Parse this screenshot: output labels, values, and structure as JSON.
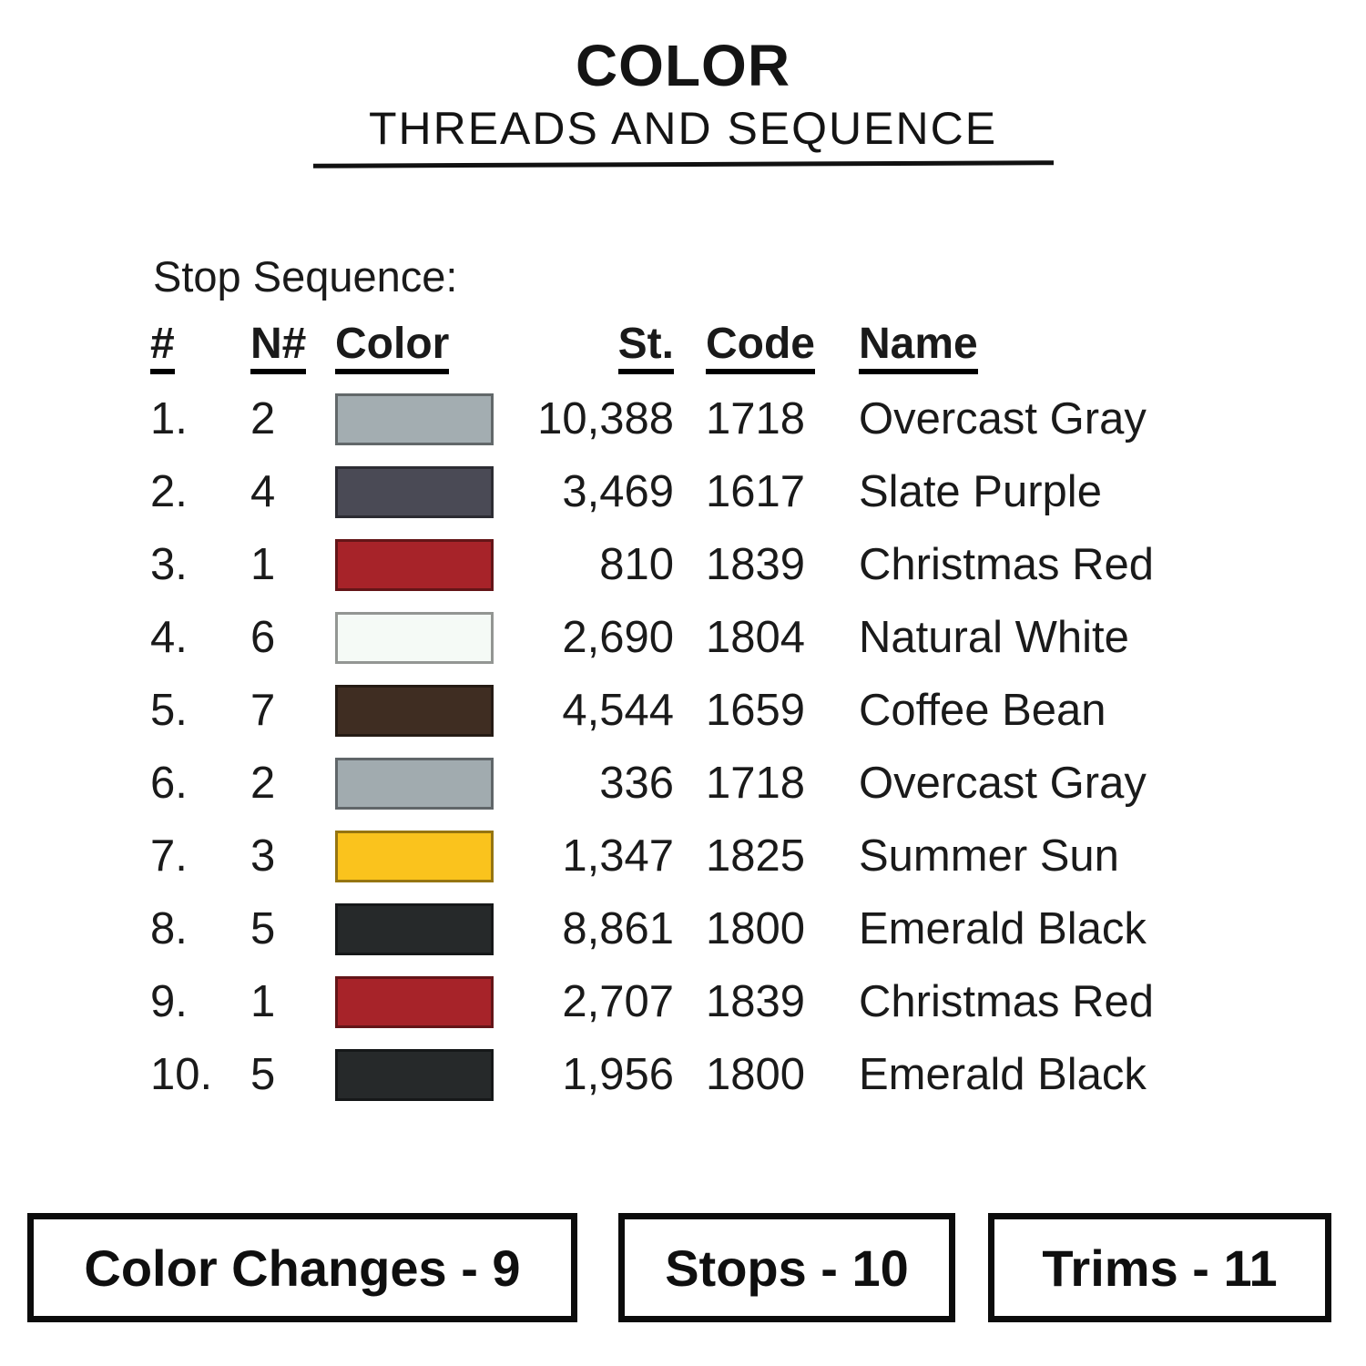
{
  "title": {
    "main": "COLOR",
    "subtitle": "THREADS AND SEQUENCE"
  },
  "stop_sequence_label": "Stop Sequence:",
  "table": {
    "headers": {
      "num": "#",
      "needle": "N#",
      "color": "Color",
      "stitches": "St.",
      "code": "Code",
      "name": "Name"
    },
    "rows": [
      {
        "num": "1.",
        "needle": "2",
        "swatch_hex": "#a3adb1",
        "stitches": "10,388",
        "code": "1718",
        "name": "Overcast Gray"
      },
      {
        "num": "2.",
        "needle": "4",
        "swatch_hex": "#4a4a55",
        "stitches": "3,469",
        "code": "1617",
        "name": "Slate Purple"
      },
      {
        "num": "3.",
        "needle": "1",
        "swatch_hex": "#a72329",
        "stitches": "810",
        "code": "1839",
        "name": "Christmas Red"
      },
      {
        "num": "4.",
        "needle": "6",
        "swatch_hex": "#f5faf6",
        "stitches": "2,690",
        "code": "1804",
        "name": "Natural White"
      },
      {
        "num": "5.",
        "needle": "7",
        "swatch_hex": "#3f2d22",
        "stitches": "4,544",
        "code": "1659",
        "name": "Coffee Bean"
      },
      {
        "num": "6.",
        "needle": "2",
        "swatch_hex": "#a1abaf",
        "stitches": "336",
        "code": "1718",
        "name": "Overcast Gray"
      },
      {
        "num": "7.",
        "needle": "3",
        "swatch_hex": "#fac31d",
        "stitches": "1,347",
        "code": "1825",
        "name": "Summer Sun"
      },
      {
        "num": "8.",
        "needle": "5",
        "swatch_hex": "#26292a",
        "stitches": "8,861",
        "code": "1800",
        "name": "Emerald Black"
      },
      {
        "num": "9.",
        "needle": "1",
        "swatch_hex": "#a72329",
        "stitches": "2,707",
        "code": "1839",
        "name": "Christmas Red"
      },
      {
        "num": "10.",
        "needle": "5",
        "swatch_hex": "#26292a",
        "stitches": "1,956",
        "code": "1800",
        "name": "Emerald Black"
      }
    ]
  },
  "summary_boxes": [
    {
      "label": "Color Changes - 9"
    },
    {
      "label": "Stops - 10"
    },
    {
      "label": "Trims - 11"
    }
  ],
  "colors": {
    "text": "#1a1a1a",
    "rule": "#111111",
    "box_border": "#0c0c0c",
    "swatch_border": "rgba(0,0,0,0.40)"
  }
}
